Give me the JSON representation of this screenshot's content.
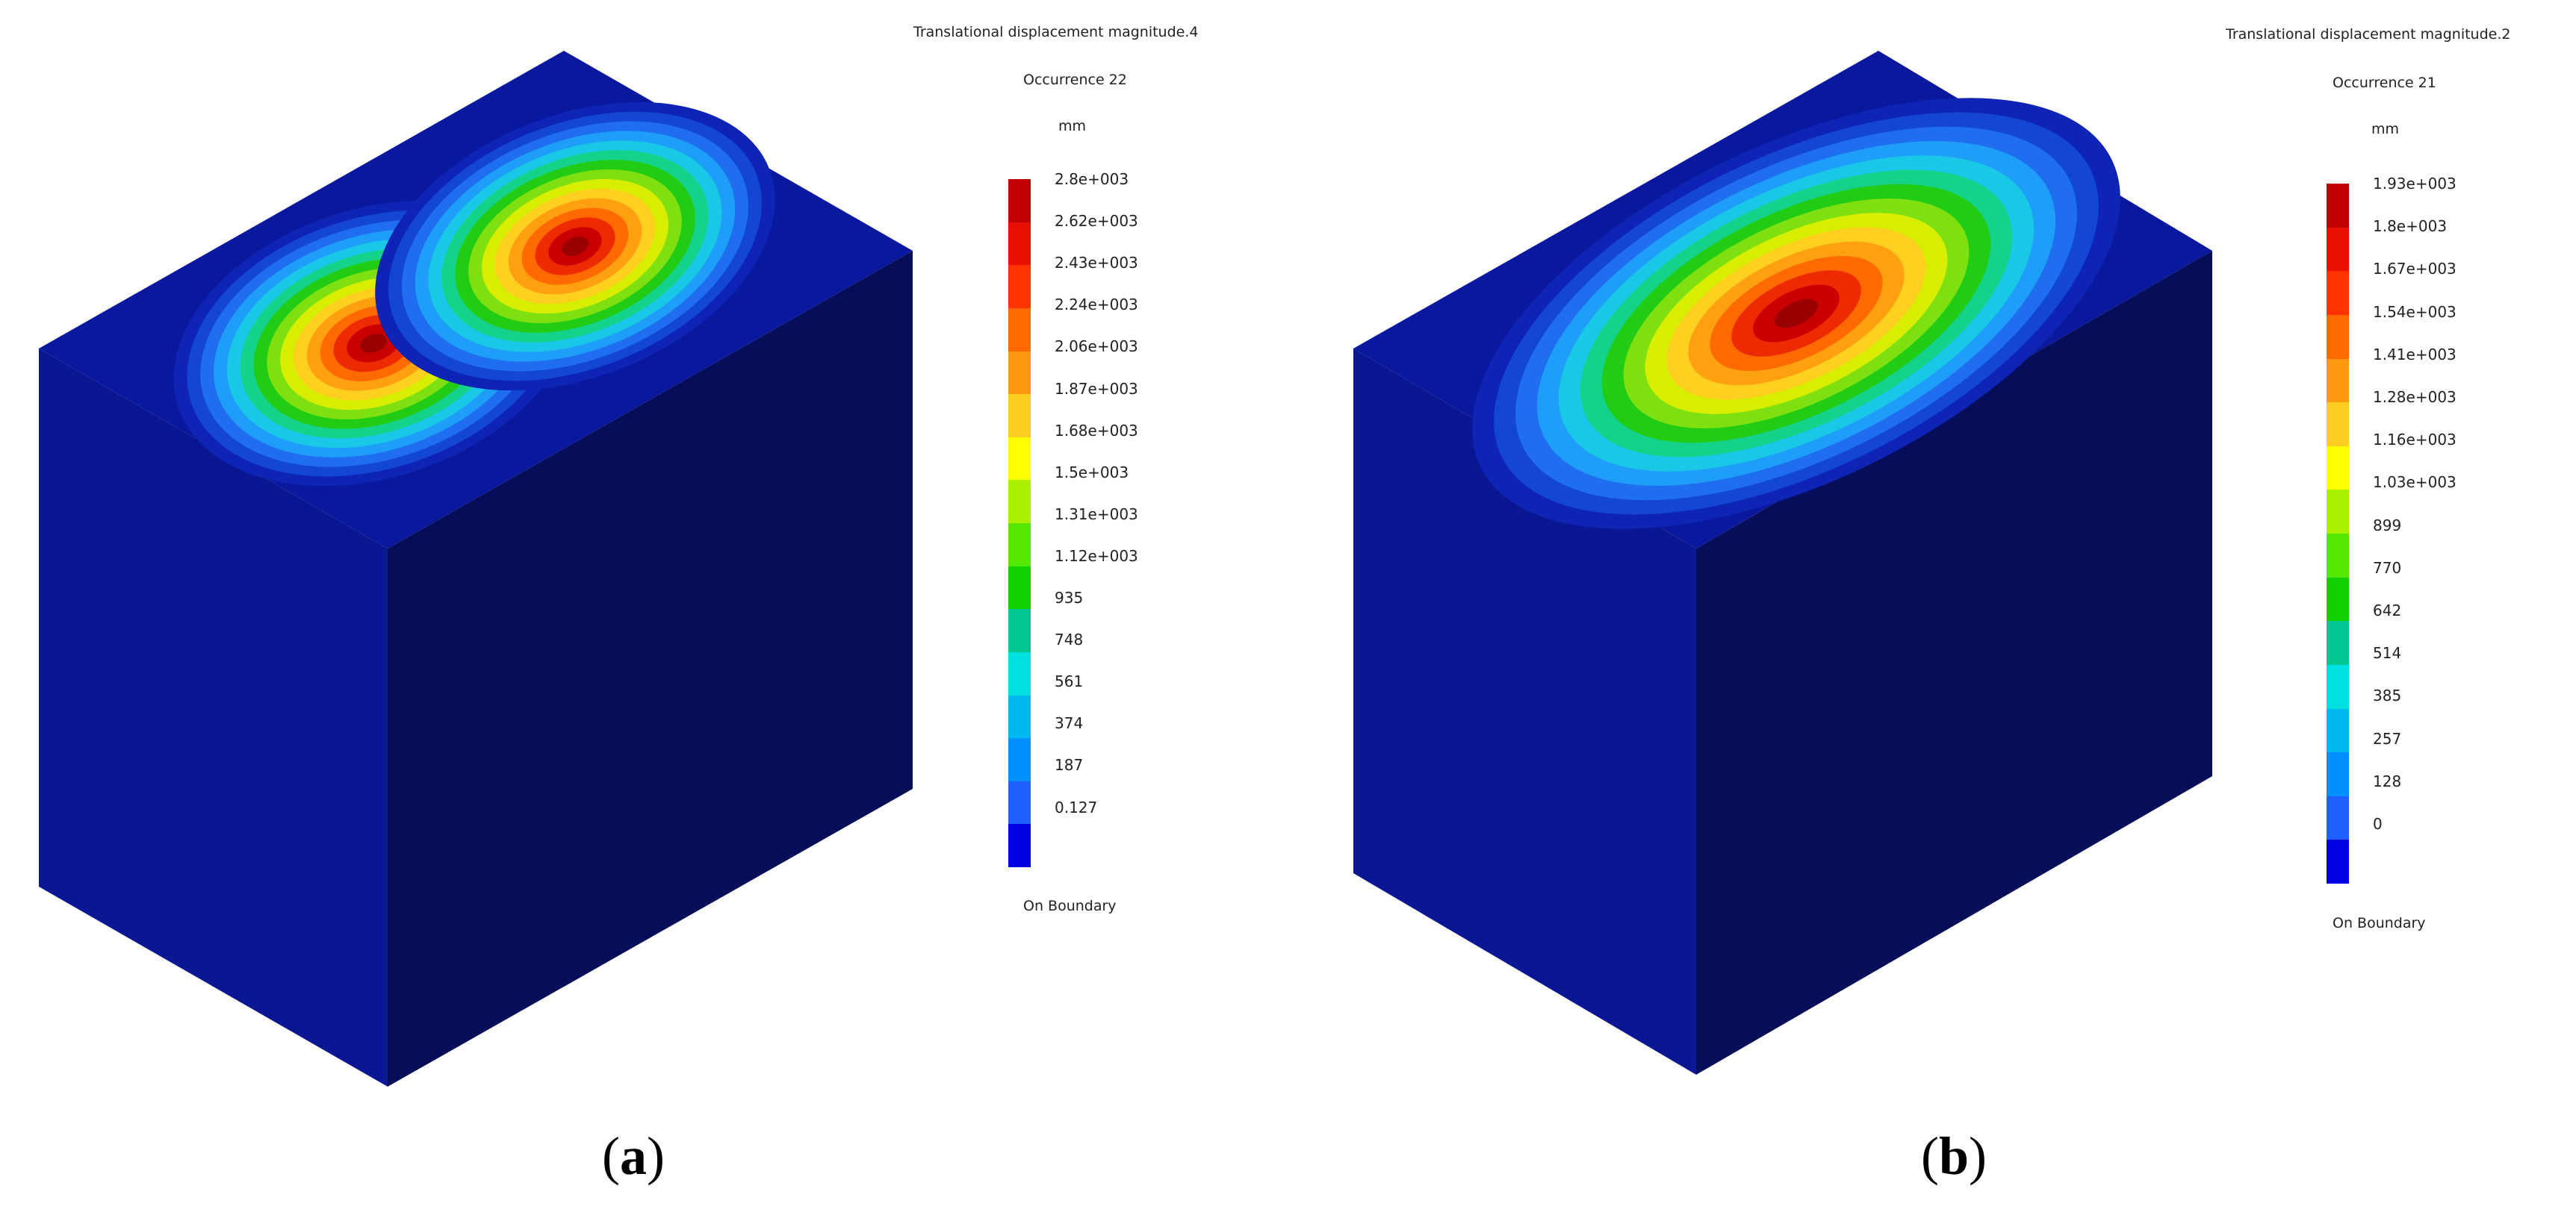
{
  "figure": {
    "panels": [
      {
        "id": "a",
        "label_open": "(",
        "label_letter": "a",
        "label_close": ")",
        "legend": {
          "title": "Translational displacement magnitude.4",
          "subtitle": "Occurrence 22",
          "unit": "mm",
          "ticks": [
            "2.8e+003",
            "2.62e+003",
            "2.43e+003",
            "2.24e+003",
            "2.06e+003",
            "1.87e+003",
            "1.68e+003",
            "1.5e+003",
            "1.31e+003",
            "1.12e+003",
            "935",
            "748",
            "561",
            "374",
            "187",
            "0.127"
          ],
          "footer": "On Boundary"
        },
        "colorbar_colors": [
          "#c00000",
          "#e81000",
          "#ff3300",
          "#ff6a00",
          "#ff9a10",
          "#ffcc22",
          "#ffff00",
          "#aaf000",
          "#55e800",
          "#11d000",
          "#00c890",
          "#00e0e0",
          "#00b8f0",
          "#0090ff",
          "#1f60ff",
          "#0000e0"
        ]
      },
      {
        "id": "b",
        "label_open": "(",
        "label_letter": "b",
        "label_close": ")",
        "legend": {
          "title": "Translational displacement magnitude.2",
          "subtitle": "Occurrence 21",
          "unit": "mm",
          "ticks": [
            "1.93e+003",
            "1.8e+003",
            "1.67e+003",
            "1.54e+003",
            "1.41e+003",
            "1.28e+003",
            "1.16e+003",
            "1.03e+003",
            "899",
            "770",
            "642",
            "514",
            "385",
            "257",
            "128",
            "0"
          ],
          "footer": "On Boundary"
        },
        "colorbar_colors": [
          "#c00000",
          "#e81000",
          "#ff3300",
          "#ff6a00",
          "#ff9a10",
          "#ffcc22",
          "#ffff00",
          "#aaf000",
          "#55e800",
          "#11d000",
          "#00c890",
          "#00e0e0",
          "#00b8f0",
          "#0090ff",
          "#1f60ff",
          "#0000e0"
        ]
      }
    ],
    "cube_colors": {
      "top": "#0a189e",
      "left": "#0b1692",
      "right": "#060e5a"
    },
    "contour_colors": [
      "#0d24b4",
      "#1446d4",
      "#1f6ef0",
      "#1e9ef8",
      "#19c8e6",
      "#14d28a",
      "#22cc14",
      "#7ee010",
      "#d8ee00",
      "#ffd020",
      "#ffa010",
      "#ff6a00",
      "#ee2a00",
      "#c80000",
      "#9a0000"
    ]
  }
}
